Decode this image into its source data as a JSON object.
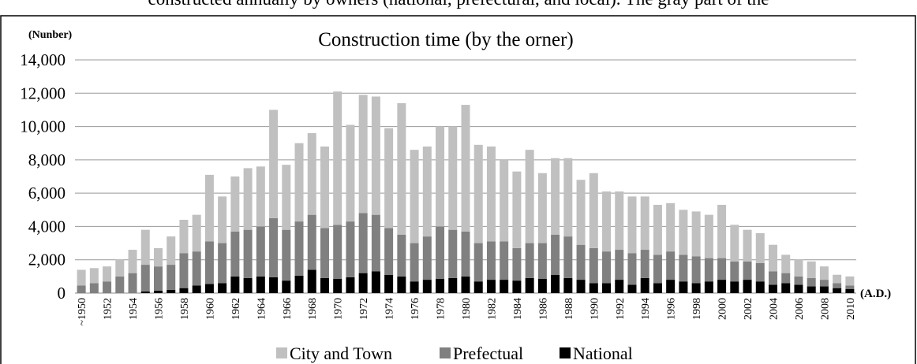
{
  "header_text": "constructed annually by owners (national, prefectural, and local). The gray part of the",
  "chart_data": {
    "type": "stacked_bar",
    "title": "Construction  time  (by the orner)",
    "y_label": "(Nunber)",
    "x_label": "(A.D.)",
    "categories": [
      "~1950",
      null,
      "1952",
      null,
      "1954",
      null,
      "1956",
      null,
      "1958",
      null,
      "1960",
      null,
      "1962",
      null,
      "1964",
      null,
      "1966",
      null,
      "1968",
      null,
      "1970",
      null,
      "1972",
      null,
      "1974",
      null,
      "1976",
      null,
      "1978",
      null,
      "1980",
      null,
      "1982",
      null,
      "1984",
      null,
      "1986",
      null,
      "1988",
      null,
      "1990",
      null,
      "1992",
      null,
      "1994",
      null,
      "1996",
      null,
      "1998",
      null,
      "2000",
      null,
      "2002",
      null,
      "2004",
      null,
      "2006",
      null,
      "2008",
      null,
      "2010"
    ],
    "series": [
      {
        "name": "City and Town",
        "color": "#c0c0c0",
        "values": [
          950,
          900,
          900,
          1000,
          1400,
          2100,
          1100,
          1700,
          2000,
          2200,
          4000,
          2800,
          3300,
          3700,
          3600,
          6500,
          3900,
          4700,
          4900,
          4900,
          8000,
          5800,
          7100,
          7100,
          6000,
          7900,
          5600,
          5400,
          6000,
          6200,
          7600,
          5900,
          5700,
          4900,
          4600,
          5600,
          4200,
          4600,
          4700,
          3900,
          4500,
          3600,
          3500,
          3400,
          3200,
          3000,
          2900,
          2700,
          2700,
          2600,
          3200,
          2200,
          1900,
          1800,
          1600,
          1100,
          1000,
          1000,
          800,
          500,
          550
        ]
      },
      {
        "name": "Prefectual",
        "color": "#808080",
        "values": [
          450,
          600,
          700,
          1000,
          1200,
          1600,
          1450,
          1500,
          2100,
          2050,
          2550,
          2400,
          2700,
          2900,
          3000,
          3550,
          3050,
          3250,
          3300,
          3000,
          3250,
          3350,
          3600,
          3400,
          2800,
          2500,
          2300,
          2600,
          3150,
          2900,
          2700,
          2300,
          2300,
          2300,
          1950,
          2100,
          2150,
          2400,
          2500,
          2100,
          2100,
          1900,
          1800,
          1900,
          1700,
          1700,
          1700,
          1600,
          1600,
          1400,
          1300,
          1200,
          1100,
          1100,
          800,
          600,
          500,
          500,
          400,
          300,
          200
        ]
      },
      {
        "name": "National",
        "color": "#000000",
        "values": [
          0,
          0,
          0,
          0,
          0,
          100,
          150,
          200,
          300,
          450,
          550,
          600,
          1000,
          900,
          1000,
          950,
          750,
          1050,
          1400,
          900,
          850,
          950,
          1200,
          1300,
          1100,
          1000,
          700,
          800,
          850,
          900,
          1000,
          700,
          800,
          800,
          750,
          900,
          850,
          1100,
          900,
          800,
          600,
          600,
          800,
          500,
          900,
          600,
          800,
          700,
          600,
          700,
          800,
          700,
          800,
          700,
          500,
          600,
          500,
          400,
          400,
          300,
          250
        ]
      }
    ],
    "ylim": [
      0,
      14000
    ],
    "yticks": [
      0,
      {
        "value": 2000,
        "label": "2,000"
      },
      {
        "value": 4000,
        "label": "4,000"
      },
      {
        "value": 6000,
        "label": "6,000"
      },
      {
        "value": 8000,
        "label": "8,000"
      },
      {
        "value": 10000,
        "label": "10,000"
      },
      {
        "value": 12000,
        "label": "12,000"
      },
      {
        "value": 14000,
        "label": "14,000"
      }
    ],
    "grid": true,
    "legend": "bottom"
  }
}
